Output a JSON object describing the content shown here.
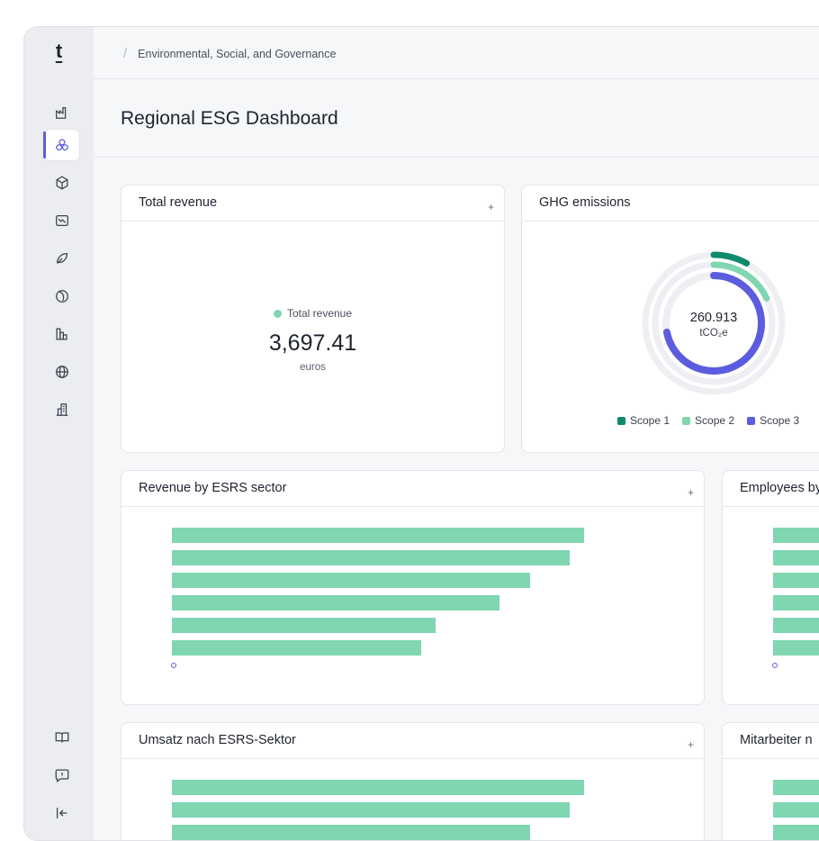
{
  "app": {
    "logo": "t",
    "breadcrumb": [
      "Environmental, Social, and Governance"
    ],
    "page_title": "Regional ESG Dashboard"
  },
  "sidebar": {
    "items": [
      {
        "icon": "factory-icon",
        "active": false
      },
      {
        "icon": "hexagons-icon",
        "active": true
      },
      {
        "icon": "cube-icon",
        "active": false
      },
      {
        "icon": "chart-trend-icon",
        "active": false
      },
      {
        "icon": "leaf-icon",
        "active": false
      },
      {
        "icon": "globe-ring-icon",
        "active": false
      },
      {
        "icon": "bars-icon",
        "active": false
      },
      {
        "icon": "globe-icon",
        "active": false
      },
      {
        "icon": "buildings-icon",
        "active": false
      }
    ],
    "bottom_items": [
      {
        "icon": "book-icon"
      },
      {
        "icon": "feedback-icon"
      },
      {
        "icon": "collapse-sidebar-icon"
      }
    ]
  },
  "cards": {
    "total_revenue": {
      "title": "Total revenue",
      "plus": "+",
      "legend": "Total revenue",
      "value": "3,697.41",
      "unit": "euros"
    },
    "ghg": {
      "title": "GHG emissions",
      "center_value": "260.913",
      "center_unit": "tCO₂e",
      "legend": [
        {
          "label": "Scope 1",
          "color": "#0f8a6c"
        },
        {
          "label": "Scope 2",
          "color": "#7fd6b1"
        },
        {
          "label": "Scope 3",
          "color": "#5b5ce0"
        }
      ]
    },
    "revenue_sector": {
      "title": "Revenue by ESRS sector",
      "plus": "+"
    },
    "employees": {
      "title": "Employees by"
    },
    "umsatz": {
      "title": "Umsatz nach ESRS-Sektor",
      "plus": "+"
    },
    "mitarbeiter": {
      "title": "Mitarbeiter n"
    }
  },
  "chart_data": [
    {
      "type": "pie",
      "title": "GHG emissions",
      "series": [
        {
          "name": "Scope 1",
          "share": 0.08
        },
        {
          "name": "Scope 2",
          "share": 0.18
        },
        {
          "name": "Scope 3",
          "share": 0.72
        }
      ]
    },
    {
      "type": "bar",
      "title": "Revenue by ESRS sector",
      "values": [
        100,
        96.5,
        87,
        79.5,
        64,
        60.5
      ]
    },
    {
      "type": "bar",
      "title": "Umsatz nach ESRS-Sektor",
      "values": [
        100,
        96.5,
        87
      ]
    }
  ]
}
